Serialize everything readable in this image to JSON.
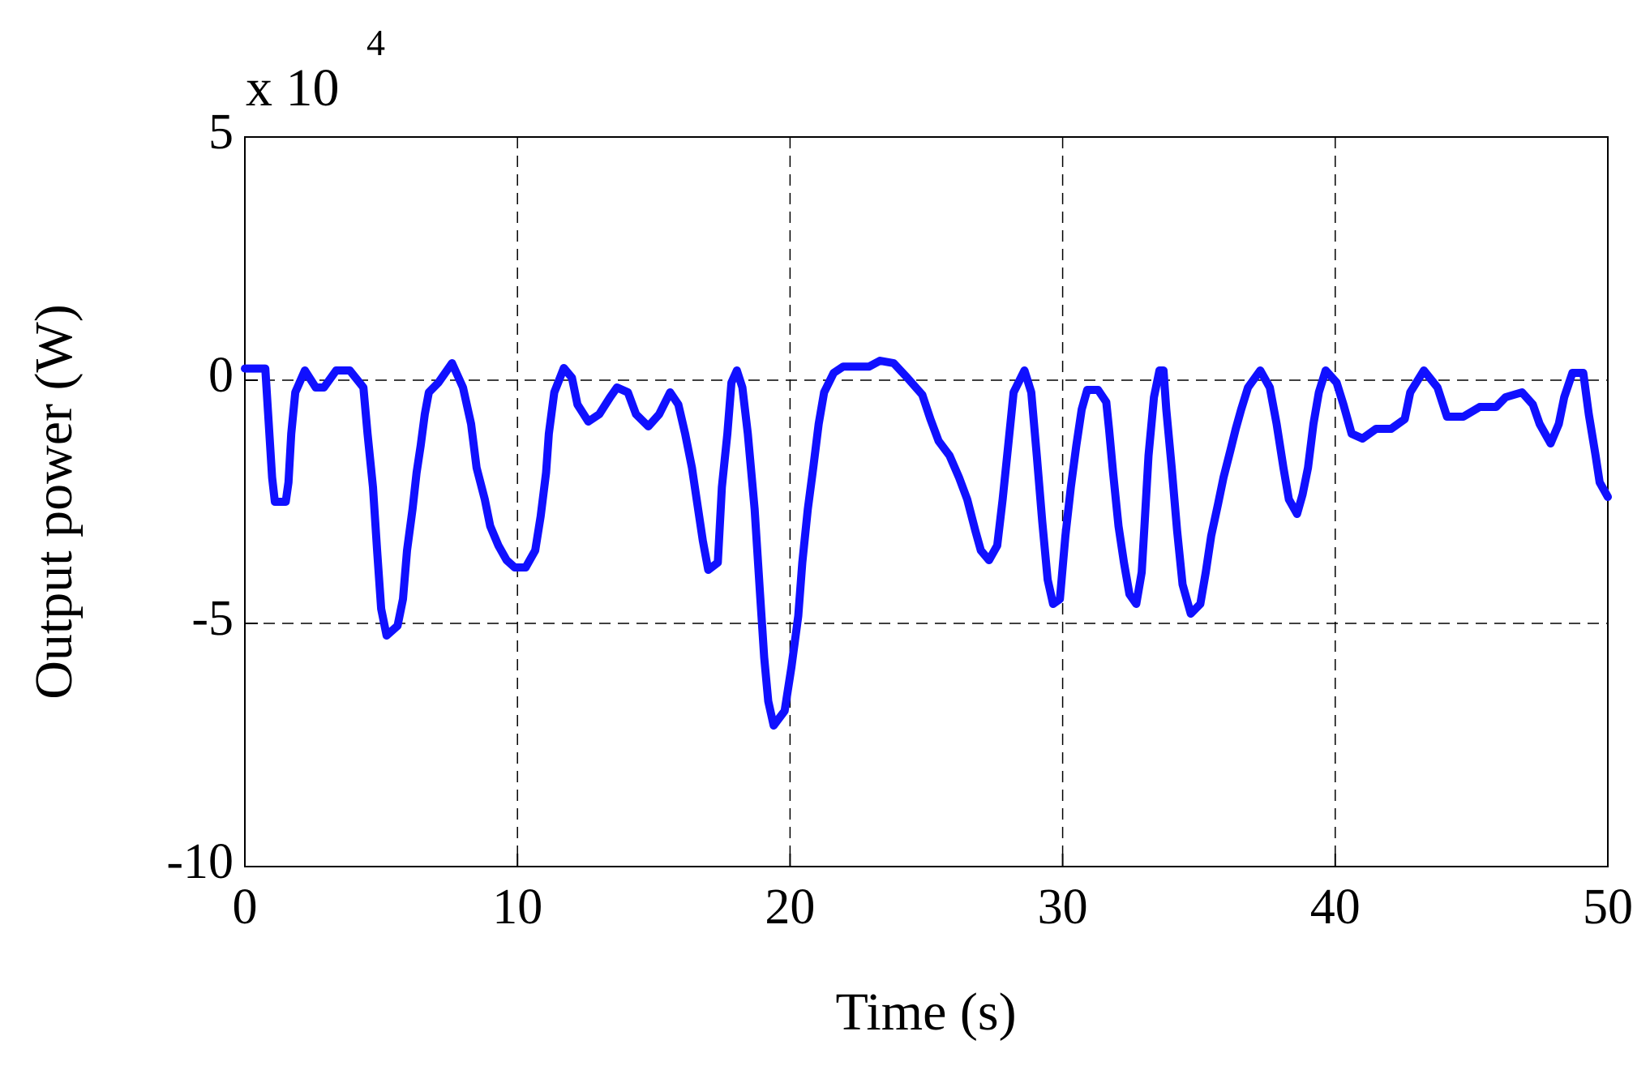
{
  "chart_data": {
    "type": "line",
    "xlabel": "Time (s)",
    "ylabel": "Output power (W)",
    "y_multiplier": {
      "base": "x 10",
      "exponent": "4"
    },
    "color": "#1010ff",
    "grid": true,
    "xlim": [
      0,
      50
    ],
    "xticks": [
      0,
      10,
      20,
      30,
      40,
      50
    ],
    "ylim": [
      -10,
      5
    ],
    "yticks": [
      5,
      0,
      -5,
      -10
    ],
    "x": [
      0,
      0.75,
      1.0,
      1.1,
      1.5,
      1.6,
      1.7,
      1.85,
      2.2,
      2.6,
      2.9,
      3.35,
      3.85,
      4.35,
      4.5,
      4.7,
      4.85,
      5.0,
      5.2,
      5.6,
      5.8,
      5.95,
      6.15,
      6.3,
      6.45,
      6.6,
      6.75,
      7.1,
      7.6,
      8.0,
      8.3,
      8.5,
      8.8,
      9.0,
      9.3,
      9.6,
      9.9,
      10.3,
      10.65,
      10.85,
      11.05,
      11.15,
      11.35,
      11.7,
      12.0,
      12.2,
      12.6,
      13.0,
      13.4,
      13.65,
      14.05,
      14.35,
      14.8,
      15.2,
      15.6,
      15.9,
      16.15,
      16.4,
      16.6,
      16.8,
      17.0,
      17.35,
      17.5,
      17.7,
      17.85,
      18.05,
      18.25,
      18.45,
      18.7,
      18.9,
      19.05,
      19.2,
      19.4,
      19.8,
      20.05,
      20.3,
      20.45,
      20.65,
      20.85,
      21.05,
      21.25,
      21.6,
      21.95,
      22.9,
      23.3,
      23.8,
      24.3,
      24.85,
      25.15,
      25.45,
      25.85,
      26.2,
      26.5,
      26.8,
      27.0,
      27.3,
      27.6,
      27.8,
      28.0,
      28.2,
      28.6,
      28.85,
      29.05,
      29.25,
      29.45,
      29.65,
      29.9,
      30.1,
      30.3,
      30.5,
      30.7,
      30.9,
      31.3,
      31.6,
      31.7,
      31.85,
      32.05,
      32.25,
      32.45,
      32.7,
      32.9,
      33.0,
      33.15,
      33.35,
      33.55,
      33.7,
      33.8,
      34.0,
      34.2,
      34.4,
      34.7,
      35.05,
      35.25,
      35.45,
      35.7,
      35.9,
      36.15,
      36.35,
      36.55,
      36.8,
      37.25,
      37.6,
      37.85,
      38.1,
      38.3,
      38.6,
      38.8,
      39.0,
      39.2,
      39.4,
      39.65,
      40.05,
      40.3,
      40.6,
      41.0,
      41.5,
      42.05,
      42.55,
      42.75,
      43.25,
      43.75,
      44.1,
      44.7,
      45.3,
      45.9,
      46.25,
      46.85,
      47.25,
      47.5,
      47.9,
      48.2,
      48.4,
      48.7,
      49.1,
      49.3,
      49.55,
      49.7,
      50.0
    ],
    "values": [
      0.24,
      0.24,
      -2.0,
      -2.5,
      -2.5,
      -2.1,
      -1.1,
      -0.25,
      0.2,
      -0.15,
      -0.15,
      0.2,
      0.2,
      -0.15,
      -1.1,
      -2.2,
      -3.5,
      -4.7,
      -5.25,
      -5.05,
      -4.5,
      -3.5,
      -2.65,
      -1.9,
      -1.35,
      -0.7,
      -0.25,
      -0.05,
      0.35,
      -0.15,
      -0.9,
      -1.8,
      -2.45,
      -3.0,
      -3.4,
      -3.7,
      -3.85,
      -3.85,
      -3.5,
      -2.8,
      -1.9,
      -1.1,
      -0.25,
      0.25,
      0.05,
      -0.5,
      -0.85,
      -0.7,
      -0.35,
      -0.15,
      -0.25,
      -0.7,
      -0.95,
      -0.7,
      -0.25,
      -0.5,
      -1.1,
      -1.8,
      -2.55,
      -3.3,
      -3.9,
      -3.75,
      -2.2,
      -1.1,
      -0.05,
      0.2,
      -0.15,
      -1.1,
      -2.65,
      -4.4,
      -5.7,
      -6.6,
      -7.1,
      -6.8,
      -5.9,
      -4.85,
      -3.75,
      -2.65,
      -1.8,
      -0.9,
      -0.25,
      0.15,
      0.28,
      0.28,
      0.4,
      0.35,
      0.05,
      -0.3,
      -0.8,
      -1.25,
      -1.55,
      -2.0,
      -2.45,
      -3.1,
      -3.5,
      -3.7,
      -3.4,
      -2.45,
      -1.35,
      -0.25,
      0.2,
      -0.25,
      -1.55,
      -2.9,
      -4.1,
      -4.6,
      -4.5,
      -3.2,
      -2.2,
      -1.35,
      -0.6,
      -0.2,
      -0.2,
      -0.45,
      -1.0,
      -1.9,
      -3.0,
      -3.75,
      -4.4,
      -4.6,
      -3.95,
      -3.0,
      -1.55,
      -0.35,
      0.2,
      0.2,
      -0.6,
      -1.8,
      -3.1,
      -4.2,
      -4.8,
      -4.6,
      -3.95,
      -3.2,
      -2.55,
      -2.0,
      -1.45,
      -1.0,
      -0.6,
      -0.15,
      0.2,
      -0.15,
      -0.9,
      -1.8,
      -2.45,
      -2.75,
      -2.35,
      -1.8,
      -0.9,
      -0.25,
      0.2,
      -0.05,
      -0.5,
      -1.1,
      -1.2,
      -1.0,
      -1.0,
      -0.8,
      -0.25,
      0.2,
      -0.15,
      -0.75,
      -0.75,
      -0.55,
      -0.55,
      -0.35,
      -0.25,
      -0.5,
      -0.9,
      -1.3,
      -0.9,
      -0.35,
      0.15,
      0.15,
      -0.7,
      -1.55,
      -2.1,
      -2.4
    ]
  }
}
